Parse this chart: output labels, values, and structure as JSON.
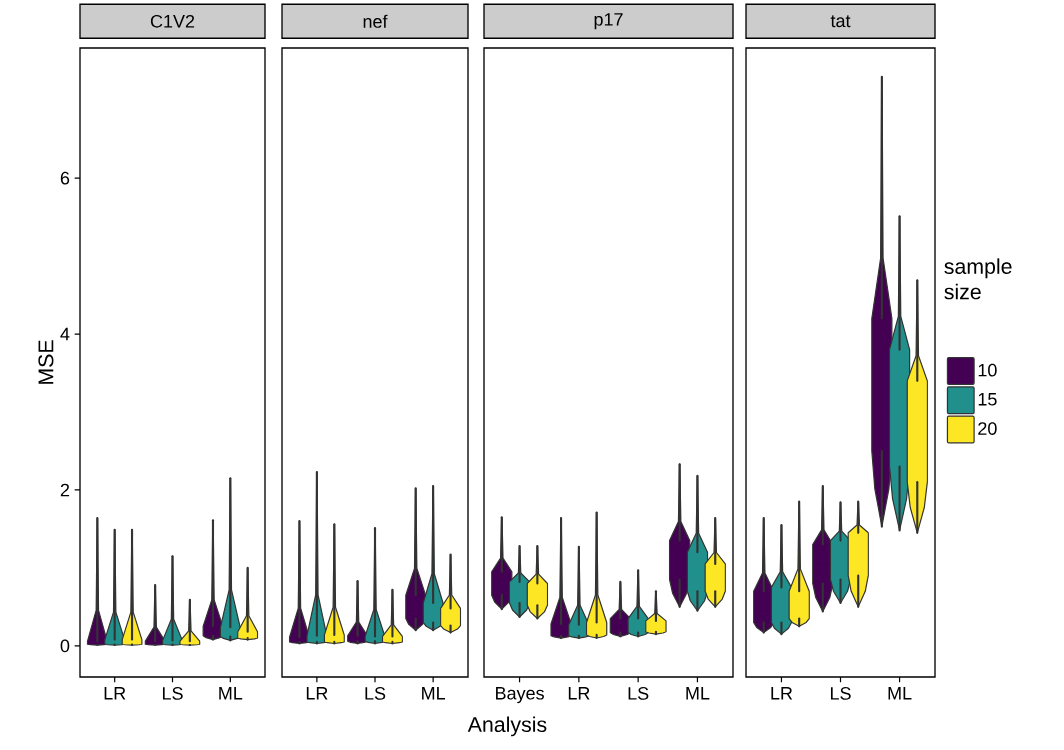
{
  "chart_data": [
    {
      "type": "box",
      "title": "C1V2",
      "ylabel": "MSE",
      "categories": [
        "LR",
        "LS",
        "ML"
      ],
      "ylim": [
        -0.4,
        7.67
      ],
      "yticks": [
        0,
        2,
        4,
        6
      ],
      "series": [
        {
          "color": "#440154",
          "boxes": [
            {
              "low": 0.01,
              "q1": 0.02,
              "median": 0.03,
              "q3": 0.06,
              "high": 1.64
            },
            {
              "low": 0.01,
              "q1": 0.02,
              "median": 0.03,
              "q3": 0.06,
              "high": 0.78
            },
            {
              "low": 0.08,
              "q1": 0.13,
              "median": 0.18,
              "q3": 0.25,
              "high": 1.61
            }
          ]
        },
        {
          "color": "#21908c",
          "boxes": [
            {
              "low": 0.01,
              "q1": 0.02,
              "median": 0.04,
              "q3": 0.08,
              "high": 1.49
            },
            {
              "low": 0.01,
              "q1": 0.02,
              "median": 0.04,
              "q3": 0.07,
              "high": 1.15
            },
            {
              "low": 0.07,
              "q1": 0.12,
              "median": 0.17,
              "q3": 0.24,
              "high": 2.15
            }
          ]
        },
        {
          "color": "#fde725",
          "boxes": [
            {
              "low": 0.01,
              "q1": 0.02,
              "median": 0.04,
              "q3": 0.08,
              "high": 1.49
            },
            {
              "low": 0.01,
              "q1": 0.02,
              "median": 0.03,
              "q3": 0.06,
              "high": 0.59
            },
            {
              "low": 0.08,
              "q1": 0.1,
              "median": 0.13,
              "q3": 0.18,
              "high": 1.0
            }
          ]
        }
      ]
    },
    {
      "type": "box",
      "title": "nef",
      "xlabel": "Analysis",
      "categories": [
        "LR",
        "LS",
        "ML"
      ],
      "ylim": [
        -0.4,
        7.67
      ],
      "tick_labels": "x",
      "series": [
        {
          "color": "#440154",
          "boxes": [
            {
              "low": 0.03,
              "q1": 0.05,
              "median": 0.07,
              "q3": 0.11,
              "high": 1.6
            },
            {
              "low": 0.03,
              "q1": 0.06,
              "median": 0.09,
              "q3": 0.13,
              "high": 0.83
            },
            {
              "low": 0.2,
              "q1": 0.35,
              "median": 0.45,
              "q3": 0.65,
              "high": 2.02
            }
          ]
        },
        {
          "color": "#21908c",
          "boxes": [
            {
              "low": 0.03,
              "q1": 0.05,
              "median": 0.08,
              "q3": 0.13,
              "high": 2.23
            },
            {
              "low": 0.03,
              "q1": 0.06,
              "median": 0.08,
              "q3": 0.12,
              "high": 1.51
            },
            {
              "low": 0.2,
              "q1": 0.3,
              "median": 0.4,
              "q3": 0.55,
              "high": 2.05
            }
          ]
        },
        {
          "color": "#fde725",
          "boxes": [
            {
              "low": 0.03,
              "q1": 0.05,
              "median": 0.08,
              "q3": 0.14,
              "high": 1.56
            },
            {
              "low": 0.03,
              "q1": 0.05,
              "median": 0.08,
              "q3": 0.12,
              "high": 0.72
            },
            {
              "low": 0.17,
              "q1": 0.26,
              "median": 0.35,
              "q3": 0.48,
              "high": 1.17
            }
          ]
        }
      ]
    },
    {
      "type": "box",
      "title": "p17",
      "categories": [
        "Bayes",
        "LR",
        "LS",
        "ML"
      ],
      "ylim": [
        -0.4,
        7.67
      ],
      "tick_labels": "x",
      "series": [
        {
          "color": "#440154",
          "boxes": [
            {
              "low": 0.47,
              "q1": 0.65,
              "median": 0.8,
              "q3": 0.95,
              "high": 1.65
            },
            {
              "low": 0.1,
              "q1": 0.13,
              "median": 0.18,
              "q3": 0.28,
              "high": 1.64
            },
            {
              "low": 0.12,
              "q1": 0.17,
              "median": 0.25,
              "q3": 0.35,
              "high": 0.82
            },
            {
              "low": 0.5,
              "q1": 0.85,
              "median": 1.1,
              "q3": 1.35,
              "high": 2.33
            }
          ]
        },
        {
          "color": "#21908c",
          "boxes": [
            {
              "low": 0.37,
              "q1": 0.55,
              "median": 0.68,
              "q3": 0.82,
              "high": 1.28
            },
            {
              "low": 0.1,
              "q1": 0.13,
              "median": 0.18,
              "q3": 0.27,
              "high": 1.27
            },
            {
              "low": 0.12,
              "q1": 0.17,
              "median": 0.25,
              "q3": 0.35,
              "high": 0.97
            },
            {
              "low": 0.45,
              "q1": 0.7,
              "median": 0.95,
              "q3": 1.2,
              "high": 2.18
            }
          ]
        },
        {
          "color": "#fde725",
          "boxes": [
            {
              "low": 0.35,
              "q1": 0.52,
              "median": 0.65,
              "q3": 0.8,
              "high": 1.28
            },
            {
              "low": 0.1,
              "q1": 0.14,
              "median": 0.2,
              "q3": 0.3,
              "high": 1.71
            },
            {
              "low": 0.15,
              "q1": 0.18,
              "median": 0.22,
              "q3": 0.32,
              "high": 0.7
            },
            {
              "low": 0.5,
              "q1": 0.7,
              "median": 0.85,
              "q3": 1.05,
              "high": 1.64
            }
          ]
        }
      ]
    },
    {
      "type": "box",
      "title": "tat",
      "categories": [
        "LR",
        "LS",
        "ML"
      ],
      "ylim": [
        -0.4,
        7.67
      ],
      "tick_labels": "x",
      "legend": "right",
      "legend_title": "sample size",
      "series": [
        {
          "name": "10",
          "color": "#440154",
          "boxes": [
            {
              "low": 0.17,
              "q1": 0.3,
              "median": 0.45,
              "q3": 0.7,
              "high": 1.64
            },
            {
              "low": 0.44,
              "q1": 0.8,
              "median": 1.05,
              "q3": 1.3,
              "high": 2.05
            },
            {
              "low": 1.53,
              "q1": 2.5,
              "median": 3.3,
              "q3": 4.2,
              "high": 7.3
            }
          ]
        },
        {
          "name": "15",
          "color": "#21908c",
          "boxes": [
            {
              "low": 0.15,
              "q1": 0.3,
              "median": 0.45,
              "q3": 0.75,
              "high": 1.55
            },
            {
              "low": 0.55,
              "q1": 0.85,
              "median": 1.1,
              "q3": 1.35,
              "high": 1.84
            },
            {
              "low": 1.48,
              "q1": 2.3,
              "median": 3.0,
              "q3": 3.8,
              "high": 5.51
            }
          ]
        },
        {
          "name": "20",
          "color": "#fde725",
          "boxes": [
            {
              "low": 0.25,
              "q1": 0.35,
              "median": 0.45,
              "q3": 0.7,
              "high": 1.85
            },
            {
              "low": 0.5,
              "q1": 0.9,
              "median": 1.15,
              "q3": 1.45,
              "high": 1.85
            },
            {
              "low": 1.45,
              "q1": 2.1,
              "median": 2.7,
              "q3": 3.4,
              "high": 4.69
            }
          ]
        }
      ]
    }
  ]
}
